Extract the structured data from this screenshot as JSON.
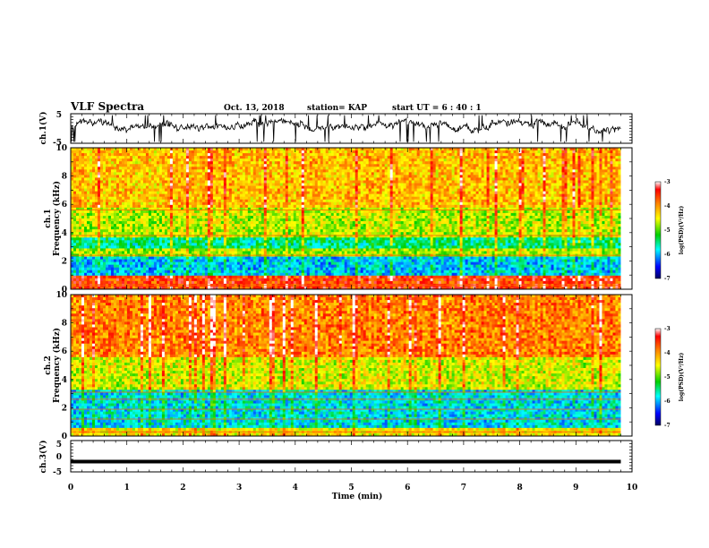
{
  "header": {
    "title": "VLF Spectra",
    "date": "Oct. 13, 2018",
    "station": "station= KAP",
    "start": "start UT =  6 : 40 : 1"
  },
  "chart_data": [
    {
      "type": "line",
      "ylabel": "ch.1(V)",
      "ylim": [
        -5,
        5
      ],
      "yticks": [
        "5",
        "-5"
      ],
      "xlim": [
        0,
        10
      ],
      "description_values": {
        "x_end": 9.8,
        "baseline": 0.5,
        "range": [
          -4.5,
          4.5
        ]
      }
    },
    {
      "type": "heatmap",
      "ylabel": "ch.1\nFrequency (kHz)",
      "ylabel_1": "ch.1",
      "ylabel_2": "Frequency (kHz)",
      "ylim": [
        0,
        10
      ],
      "yticks": [
        "0",
        "2",
        "4",
        "6",
        "8",
        "10"
      ],
      "xlim": [
        0,
        10
      ],
      "x_end": 9.8,
      "colorbar": {
        "label": "log(PSD)(V²/Hz)",
        "range": [
          -7,
          -3
        ],
        "ticks": [
          "-3",
          "-4",
          "-5",
          "-6",
          "-7"
        ]
      },
      "bands_khz": [
        {
          "from": 0.0,
          "to": 1.0,
          "level": -3.6
        },
        {
          "from": 1.0,
          "to": 2.3,
          "level": -5.9
        },
        {
          "from": 2.3,
          "to": 2.8,
          "level": -4.8
        },
        {
          "from": 2.8,
          "to": 3.6,
          "level": -5.5
        },
        {
          "from": 3.6,
          "to": 5.8,
          "level": -4.7
        },
        {
          "from": 5.8,
          "to": 10.0,
          "level": -4.2
        }
      ],
      "lines_khz": [
        0.3,
        2.4,
        3.8,
        5.6
      ]
    },
    {
      "type": "heatmap",
      "ylabel": "ch.2\nFrequency (kHz)",
      "ylabel_1": "ch.2",
      "ylabel_2": "Frequency (kHz)",
      "ylim": [
        0,
        10
      ],
      "yticks": [
        "0",
        "2",
        "4",
        "6",
        "8",
        "10"
      ],
      "xlim": [
        0,
        10
      ],
      "x_end": 9.8,
      "colorbar": {
        "label": "log(PSD)(V²/Hz)",
        "range": [
          -7,
          -3
        ],
        "ticks": [
          "-3",
          "-4",
          "-5",
          "-6",
          "-7"
        ]
      },
      "bands_khz": [
        {
          "from": 0.0,
          "to": 0.6,
          "level": -4.4
        },
        {
          "from": 0.6,
          "to": 3.2,
          "level": -5.8
        },
        {
          "from": 3.2,
          "to": 5.5,
          "level": -4.6
        },
        {
          "from": 5.5,
          "to": 10.0,
          "level": -3.9
        }
      ],
      "lines_khz": [
        0.3,
        1.2,
        1.9,
        2.6,
        3.1
      ]
    },
    {
      "type": "line",
      "ylabel": "ch.3(V)",
      "ylim": [
        -5,
        5
      ],
      "yticks": [
        "5",
        "0",
        "-5"
      ],
      "xlim": [
        0,
        10
      ],
      "constant_value": -1.7,
      "x_end": 9.8
    }
  ],
  "xaxis": {
    "label": "Time (min)",
    "ticks": [
      "0",
      "1",
      "2",
      "3",
      "4",
      "5",
      "6",
      "7",
      "8",
      "9",
      "10"
    ]
  },
  "colors": {
    "dark_blue": "#0000a0",
    "blue": "#0000ff",
    "cyan": "#00ffff",
    "green": "#00d000",
    "yellow": "#ffff00",
    "orange": "#ff8000",
    "red": "#ff0000",
    "white": "#ffffff"
  }
}
